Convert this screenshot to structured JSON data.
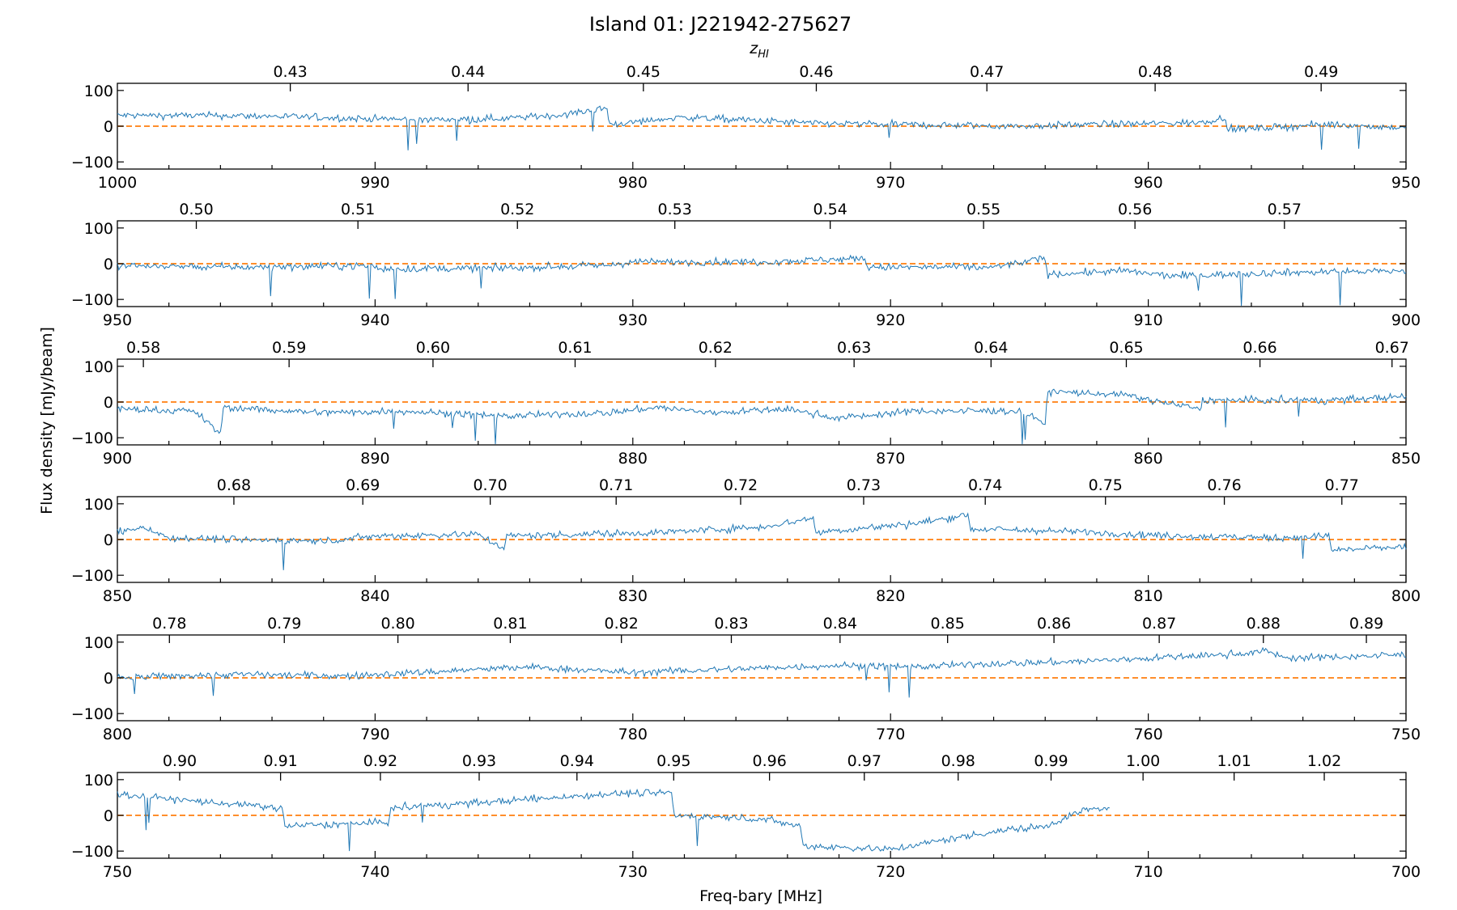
{
  "chart_data": {
    "type": "line",
    "title": "Island 01: J221942-275627",
    "xlabel": "Freq-bary [MHz]",
    "ylabel": "Flux density [mJy/beam]",
    "top_axis_label": "z_HI",
    "ylim": [
      -120,
      120
    ],
    "y_ticks": [
      100,
      0,
      -100
    ],
    "y_tick_labels": [
      "100",
      "0",
      "−100"
    ],
    "zero_line": {
      "y": 0,
      "style": "dashed",
      "color": "#ff7f0e"
    },
    "colors": {
      "spectrum": "#1f77b4",
      "zero_line": "#ff7f0e"
    },
    "panels": [
      {
        "xlim": [
          1000,
          950
        ],
        "x_ticks": [
          1000,
          990,
          980,
          970,
          960,
          950
        ],
        "z_ticks": [
          0.43,
          0.44,
          0.45,
          0.46,
          0.47,
          0.48,
          0.49
        ],
        "flux_mjy": [
          [
            1000,
            30
          ],
          [
            997,
            30
          ],
          [
            994,
            28
          ],
          [
            991,
            22
          ],
          [
            988,
            18
          ],
          [
            985,
            22
          ],
          [
            983,
            30
          ],
          [
            981,
            50
          ],
          [
            980.9,
            5
          ],
          [
            978,
            25
          ],
          [
            975,
            15
          ],
          [
            973,
            8
          ],
          [
            970,
            5
          ],
          [
            967,
            2
          ],
          [
            965,
            0
          ],
          [
            962,
            5
          ],
          [
            958,
            10
          ],
          [
            957,
            25
          ],
          [
            956.9,
            -10
          ],
          [
            953,
            5
          ],
          [
            950,
            -5
          ]
        ]
      },
      {
        "xlim": [
          950,
          900
        ],
        "x_ticks": [
          950,
          940,
          930,
          920,
          910,
          900
        ],
        "z_ticks": [
          0.5,
          0.51,
          0.52,
          0.53,
          0.54,
          0.55,
          0.56,
          0.57
        ],
        "flux_mjy": [
          [
            950,
            -5
          ],
          [
            945,
            -10
          ],
          [
            940,
            -5
          ],
          [
            939.9,
            -15
          ],
          [
            935,
            -12
          ],
          [
            931,
            -5
          ],
          [
            930,
            5
          ],
          [
            925,
            5
          ],
          [
            921,
            15
          ],
          [
            920.9,
            -10
          ],
          [
            916,
            -10
          ],
          [
            914,
            15
          ],
          [
            913.9,
            -30
          ],
          [
            911,
            -20
          ],
          [
            909,
            -35
          ],
          [
            905,
            -25
          ],
          [
            900,
            -20
          ]
        ]
      },
      {
        "xlim": [
          900,
          850
        ],
        "x_ticks": [
          900,
          890,
          880,
          870,
          860,
          850
        ],
        "z_ticks": [
          0.58,
          0.59,
          0.6,
          0.61,
          0.62,
          0.63,
          0.64,
          0.65,
          0.66,
          0.67
        ],
        "flux_mjy": [
          [
            900,
            -20
          ],
          [
            897,
            -25
          ],
          [
            896,
            -90
          ],
          [
            895.9,
            -15
          ],
          [
            892,
            -30
          ],
          [
            889,
            -25
          ],
          [
            885,
            -40
          ],
          [
            881,
            -30
          ],
          [
            879,
            -15
          ],
          [
            877,
            -30
          ],
          [
            874,
            -20
          ],
          [
            872,
            -45
          ],
          [
            869,
            -25
          ],
          [
            865,
            -25
          ],
          [
            864,
            -60
          ],
          [
            863.9,
            30
          ],
          [
            861,
            20
          ],
          [
            858,
            -20
          ],
          [
            857.9,
            5
          ],
          [
            853,
            5
          ],
          [
            850,
            15
          ]
        ]
      },
      {
        "xlim": [
          850,
          800
        ],
        "x_ticks": [
          850,
          840,
          830,
          820,
          810,
          800
        ],
        "z_ticks": [
          0.68,
          0.69,
          0.7,
          0.71,
          0.72,
          0.73,
          0.74,
          0.75,
          0.76,
          0.77
        ],
        "flux_mjy": [
          [
            850,
            20
          ],
          [
            849,
            35
          ],
          [
            848,
            5
          ],
          [
            845,
            0
          ],
          [
            842,
            -5
          ],
          [
            840,
            10
          ],
          [
            836,
            15
          ],
          [
            835,
            -25
          ],
          [
            834.9,
            10
          ],
          [
            829,
            20
          ],
          [
            825,
            35
          ],
          [
            823,
            60
          ],
          [
            822.9,
            20
          ],
          [
            819,
            45
          ],
          [
            817,
            70
          ],
          [
            816.9,
            30
          ],
          [
            812,
            20
          ],
          [
            809,
            10
          ],
          [
            805,
            5
          ],
          [
            803,
            10
          ],
          [
            802.9,
            -30
          ],
          [
            800,
            -20
          ]
        ]
      },
      {
        "xlim": [
          800,
          750
        ],
        "x_ticks": [
          800,
          790,
          780,
          770,
          760,
          750
        ],
        "z_ticks": [
          0.78,
          0.79,
          0.8,
          0.81,
          0.82,
          0.83,
          0.84,
          0.85,
          0.86,
          0.87,
          0.88,
          0.89
        ],
        "flux_mjy": [
          [
            800,
            0
          ],
          [
            798,
            5
          ],
          [
            795,
            10
          ],
          [
            791,
            5
          ],
          [
            787,
            20
          ],
          [
            784,
            30
          ],
          [
            780,
            15
          ],
          [
            776,
            25
          ],
          [
            772,
            35
          ],
          [
            769,
            30
          ],
          [
            766,
            40
          ],
          [
            763,
            45
          ],
          [
            760,
            55
          ],
          [
            757,
            65
          ],
          [
            755.5,
            75
          ],
          [
            754.5,
            55
          ],
          [
            752,
            60
          ],
          [
            750,
            65
          ]
        ]
      },
      {
        "xlim": [
          750,
          700
        ],
        "x_ticks": [
          750,
          740,
          730,
          720,
          710,
          700
        ],
        "z_ticks": [
          0.9,
          0.91,
          0.92,
          0.93,
          0.94,
          0.95,
          0.96,
          0.97,
          0.98,
          0.99,
          1.0,
          1.01,
          1.02
        ],
        "flux_mjy": [
          [
            750,
            60
          ],
          [
            747,
            40
          ],
          [
            743.6,
            20
          ],
          [
            743.5,
            -30
          ],
          [
            739.5,
            -20
          ],
          [
            739.4,
            20
          ],
          [
            735,
            40
          ],
          [
            731,
            60
          ],
          [
            728.5,
            65
          ],
          [
            728.4,
            0
          ],
          [
            725,
            -10
          ],
          [
            723.5,
            -30
          ],
          [
            723.4,
            -85
          ],
          [
            720,
            -95
          ],
          [
            718,
            -70
          ],
          [
            716,
            -45
          ],
          [
            714,
            -30
          ],
          [
            712.5,
            15
          ],
          [
            711.5,
            20
          ]
        ]
      }
    ]
  }
}
